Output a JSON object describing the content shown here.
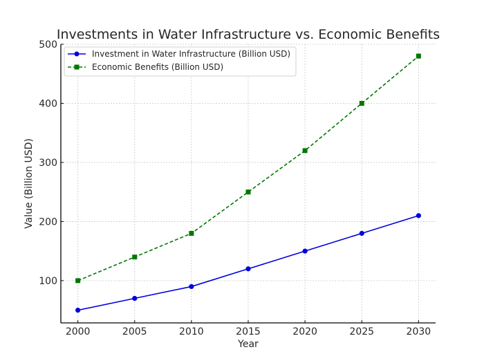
{
  "chart_data": {
    "type": "line",
    "title": "Investments in Water Infrastructure vs. Economic Benefits",
    "xlabel": "Year",
    "ylabel": "Value (Billion USD)",
    "x": [
      2000,
      2005,
      2010,
      2015,
      2020,
      2025,
      2030
    ],
    "xlim": [
      1998.5,
      2031.5
    ],
    "ylim": [
      28.5,
      500
    ],
    "xticks": [
      2000,
      2005,
      2010,
      2015,
      2020,
      2025,
      2030
    ],
    "yticks": [
      100,
      200,
      300,
      400,
      500
    ],
    "grid": true,
    "legend_position": "top-left",
    "series": [
      {
        "name": "Investment in Water Infrastructure (Billion USD)",
        "values": [
          50,
          70,
          90,
          120,
          150,
          180,
          210
        ],
        "color": "#0000dd",
        "line_style": "solid",
        "marker": "circle"
      },
      {
        "name": "Economic Benefits (Billion USD)",
        "values": [
          100,
          140,
          180,
          250,
          320,
          400,
          480
        ],
        "color": "#007700",
        "line_style": "dashed",
        "marker": "square"
      }
    ]
  }
}
